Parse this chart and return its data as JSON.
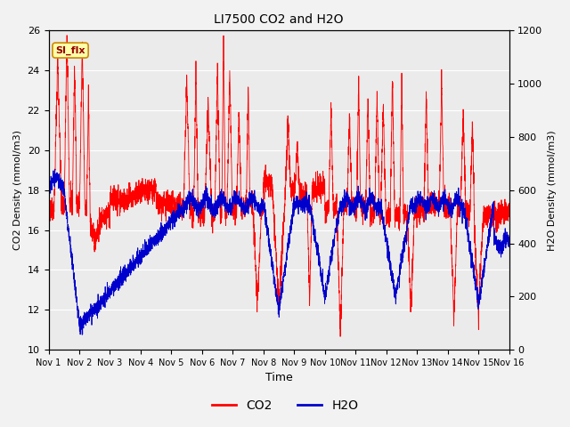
{
  "title": "LI7500 CO2 and H2O",
  "xlabel": "Time",
  "ylabel_left": "CO2 Density (mmol/m3)",
  "ylabel_right": "H2O Density (mmol/m3)",
  "ylim_left": [
    10,
    26
  ],
  "ylim_right": [
    0,
    1200
  ],
  "yticks_left": [
    10,
    12,
    14,
    16,
    18,
    20,
    22,
    24,
    26
  ],
  "yticks_right": [
    0,
    200,
    400,
    600,
    800,
    1000,
    1200
  ],
  "co2_color": "#ff0000",
  "h2o_color": "#0000cc",
  "legend_label_co2": "CO2",
  "legend_label_h2o": "H2O",
  "annotation_text": "SI_flx",
  "plot_bg_color": "#ebebeb",
  "fig_bg_color": "#f2f2f2",
  "n_days": 15,
  "seed": 42
}
